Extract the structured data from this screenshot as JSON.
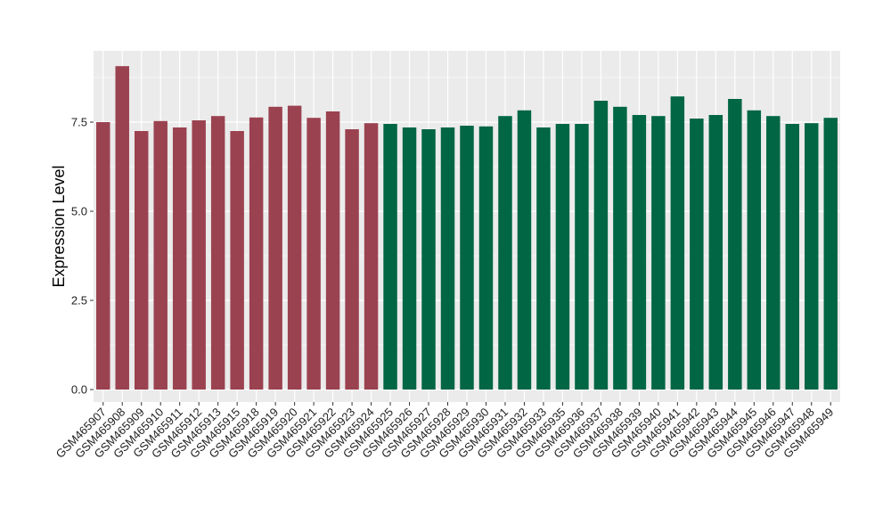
{
  "chart_data": {
    "type": "bar",
    "title": "",
    "xlabel": "",
    "ylabel": "Expression Level",
    "ylim": [
      -0.35,
      9.5
    ],
    "yticks": [
      0.0,
      2.5,
      5.0,
      7.5
    ],
    "ytick_labels": [
      "0.0",
      "2.5",
      "5.0",
      "7.5"
    ],
    "grid": true,
    "legend": "none",
    "background_color": "#ebebeb",
    "grid_color": "#ffffff",
    "categories": [
      "GSM465907",
      "GSM465908",
      "GSM465909",
      "GSM465910",
      "GSM465911",
      "GSM465912",
      "GSM465913",
      "GSM465915",
      "GSM465918",
      "GSM465919",
      "GSM465920",
      "GSM465921",
      "GSM465922",
      "GSM465923",
      "GSM465924",
      "GSM465925",
      "GSM465926",
      "GSM465927",
      "GSM465928",
      "GSM465929",
      "GSM465930",
      "GSM465931",
      "GSM465932",
      "GSM465933",
      "GSM465935",
      "GSM465936",
      "GSM465937",
      "GSM465938",
      "GSM465939",
      "GSM465940",
      "GSM465941",
      "GSM465942",
      "GSM465943",
      "GSM465944",
      "GSM465945",
      "GSM465946",
      "GSM465947",
      "GSM465948",
      "GSM465949"
    ],
    "values": [
      7.5,
      9.07,
      7.25,
      7.53,
      7.35,
      7.55,
      7.67,
      7.25,
      7.63,
      7.93,
      7.96,
      7.62,
      7.8,
      7.3,
      7.47,
      7.45,
      7.35,
      7.3,
      7.35,
      7.4,
      7.38,
      7.67,
      7.83,
      7.35,
      7.45,
      7.45,
      8.1,
      7.93,
      7.7,
      7.67,
      8.22,
      7.6,
      7.7,
      8.15,
      7.83,
      7.67,
      7.45,
      7.47,
      7.62
    ],
    "group_colors": [
      "#9b4250",
      "#9b4250",
      "#9b4250",
      "#9b4250",
      "#9b4250",
      "#9b4250",
      "#9b4250",
      "#9b4250",
      "#9b4250",
      "#9b4250",
      "#9b4250",
      "#9b4250",
      "#9b4250",
      "#9b4250",
      "#9b4250",
      "#006644",
      "#006644",
      "#006644",
      "#006644",
      "#006644",
      "#006644",
      "#006644",
      "#006644",
      "#006644",
      "#006644",
      "#006644",
      "#006644",
      "#006644",
      "#006644",
      "#006644",
      "#006644",
      "#006644",
      "#006644",
      "#006644",
      "#006644",
      "#006644",
      "#006644",
      "#006644",
      "#006644"
    ]
  }
}
